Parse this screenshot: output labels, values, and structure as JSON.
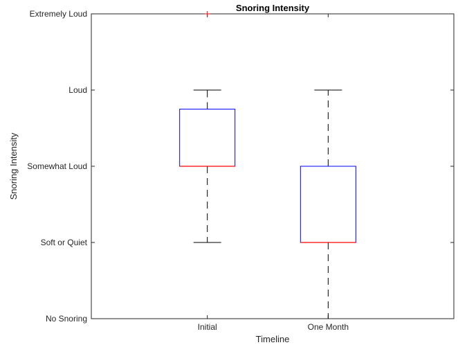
{
  "chart_data": {
    "type": "box",
    "title": "Snoring Intensity",
    "xlabel": "Timeline",
    "ylabel": "Snoring Intensity",
    "categories": [
      "Initial",
      "One Month"
    ],
    "y_tick_labels": [
      "No Snoring",
      "Soft or Quiet",
      "Somewhat Loud",
      "Loud",
      "Extremely Loud"
    ],
    "y_tick_values": [
      0,
      1,
      2,
      3,
      4
    ],
    "ylim": [
      0,
      4
    ],
    "grid": false,
    "boxes": [
      {
        "category": "Initial",
        "whisker_low": 1,
        "q1": 2,
        "median": 2,
        "q3": 2.75,
        "whisker_high": 3,
        "outliers": [
          4
        ]
      },
      {
        "category": "One Month",
        "whisker_low": 0,
        "q1": 1,
        "median": 1,
        "q3": 2,
        "whisker_high": 3,
        "outliers": []
      }
    ],
    "colors": {
      "box": "#0000ff",
      "median": "#ff0000",
      "whisker": "#000000",
      "outlier": "#ff0000",
      "axis": "#262626"
    }
  }
}
